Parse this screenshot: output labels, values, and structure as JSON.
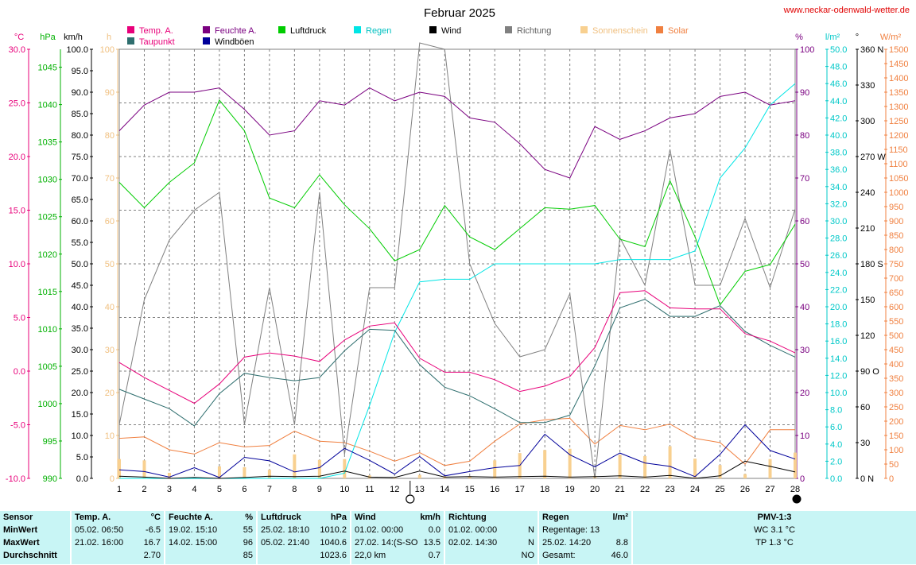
{
  "site_link": "www.neckar-odenwald-wetter.de",
  "colors": {
    "temp": "#e8007a",
    "dew": "#2e6e6e",
    "humidity": "#7a0080",
    "wind_gust": "#00009a",
    "pressure": "#00cc00",
    "rain": "#00e5e5",
    "wind": "#000000",
    "direction": "#808080",
    "sunshine": "#f8d090",
    "solar": "#f08040"
  },
  "chart_data": {
    "type": "line",
    "title": "Februar 2025",
    "x": [
      1,
      2,
      3,
      4,
      5,
      6,
      7,
      8,
      9,
      10,
      11,
      12,
      13,
      14,
      15,
      16,
      17,
      18,
      19,
      20,
      21,
      22,
      23,
      24,
      25,
      26,
      27,
      28
    ],
    "x_ticks": [
      "1",
      "2",
      "3",
      "4",
      "5",
      "6",
      "7",
      "8",
      "9",
      "10",
      "11",
      "12",
      "13",
      "14",
      "15",
      "16",
      "17",
      "18",
      "19",
      "20",
      "21",
      "22",
      "23",
      "24",
      "25",
      "26",
      "27",
      "28"
    ],
    "legend": [
      {
        "key": "temp",
        "label": "Temp. A."
      },
      {
        "key": "humidity",
        "label": "Feuchte A."
      },
      {
        "key": "pressure",
        "label": "Luftdruck"
      },
      {
        "key": "rain",
        "label": "Regen"
      },
      {
        "key": "wind",
        "label": "Wind"
      },
      {
        "key": "direction",
        "label": "Richtung"
      },
      {
        "key": "sunshine",
        "label": "Sonnenschein"
      },
      {
        "key": "solar",
        "label": "Solar"
      },
      {
        "key": "dew",
        "label": "Taupunkt"
      },
      {
        "key": "wind_gust",
        "label": "Windböen"
      }
    ],
    "axes": [
      {
        "key": "temp",
        "unit": "°C",
        "ticks": [
          "30.0",
          "25.0",
          "20.0",
          "15.0",
          "10.0",
          "5.0",
          "0.0",
          "-5.0",
          "-10.0"
        ],
        "range": [
          -10,
          30
        ]
      },
      {
        "key": "pressure",
        "unit": "hPa",
        "ticks": [
          "1045",
          "1040",
          "1035",
          "1030",
          "1025",
          "1020",
          "1015",
          "1010",
          "1005",
          "1000",
          "995",
          "990"
        ],
        "range": [
          990,
          1047.4
        ]
      },
      {
        "key": "wind",
        "unit": "km/h",
        "ticks": [
          "100.0",
          "95.0",
          "90.0",
          "85.0",
          "80.0",
          "75.0",
          "70.0",
          "65.0",
          "60.0",
          "55.0",
          "50.0",
          "45.0",
          "40.0",
          "35.0",
          "30.0",
          "25.0",
          "20.0",
          "15.0",
          "10.0",
          "5.0",
          "0.0"
        ],
        "range": [
          0,
          100
        ]
      },
      {
        "key": "sunshine",
        "unit": "h",
        "ticks": [
          "100",
          "90",
          "80",
          "70",
          "60",
          "50",
          "40",
          "30",
          "20",
          "10",
          "0"
        ],
        "range": [
          0,
          100
        ]
      },
      {
        "key": "humidity",
        "unit": "%",
        "ticks": [
          "100",
          "90",
          "80",
          "70",
          "60",
          "50",
          "40",
          "30",
          "20",
          "10",
          "0"
        ],
        "range": [
          0,
          100
        ]
      },
      {
        "key": "rain",
        "unit": "l/m²",
        "ticks": [
          "50.0",
          "48.0",
          "46.0",
          "44.0",
          "42.0",
          "40.0",
          "38.0",
          "36.0",
          "34.0",
          "32.0",
          "30.0",
          "28.0",
          "26.0",
          "24.0",
          "22.0",
          "20.0",
          "18.0",
          "16.0",
          "14.0",
          "12.0",
          "10.0",
          "8.0",
          "6.0",
          "4.0",
          "2.0",
          "0.0"
        ],
        "range": [
          0,
          50
        ]
      },
      {
        "key": "direction",
        "unit": "°",
        "ticks": [
          "360 N",
          "330",
          "300",
          "270 W",
          "240",
          "210",
          "180 S",
          "150",
          "120",
          "90 O",
          "60",
          "30",
          "0 N"
        ],
        "range": [
          0,
          360
        ]
      },
      {
        "key": "solar",
        "unit": "W/m²",
        "ticks": [
          "1500",
          "1450",
          "1400",
          "1350",
          "1300",
          "1250",
          "1200",
          "1150",
          "1100",
          "1050",
          "1000",
          "950",
          "900",
          "850",
          "800",
          "750",
          "700",
          "650",
          "600",
          "550",
          "500",
          "450",
          "400",
          "350",
          "300",
          "250",
          "200",
          "150",
          "100",
          "50",
          "0"
        ],
        "range": [
          0,
          1500
        ]
      }
    ],
    "series": [
      {
        "key": "temp",
        "name": "Temp. A.",
        "values": [
          0.8,
          -0.6,
          -1.8,
          -3.0,
          -1.2,
          1.3,
          1.7,
          1.4,
          0.9,
          2.9,
          4.2,
          4.5,
          1.2,
          -0.1,
          -0.1,
          -0.8,
          -1.9,
          -1.4,
          -0.5,
          2.2,
          7.3,
          7.5,
          5.9,
          5.8,
          5.8,
          3.5,
          2.8,
          1.7
        ]
      },
      {
        "key": "dew",
        "name": "Taupunkt",
        "values": [
          -1.7,
          -2.6,
          -3.5,
          -5.1,
          -2.1,
          -0.2,
          -0.6,
          -0.9,
          -0.6,
          1.9,
          3.9,
          3.8,
          0.6,
          -1.5,
          -2.3,
          -3.5,
          -4.8,
          -4.8,
          -4.1,
          0.5,
          5.9,
          6.7,
          5.1,
          5.1,
          6.1,
          3.7,
          2.4,
          1.3
        ]
      },
      {
        "key": "humidity",
        "name": "Feuchte A.",
        "values": [
          81,
          87,
          90,
          90,
          91,
          86,
          80,
          81,
          88,
          87,
          91,
          88,
          90,
          89,
          84,
          83,
          78,
          72,
          70,
          82,
          79,
          81,
          84,
          85,
          89,
          90,
          87,
          88
        ]
      },
      {
        "key": "pressure",
        "name": "Luftdruck",
        "values": [
          1029.6,
          1026.2,
          1029.6,
          1032.2,
          1040.6,
          1036.5,
          1027.5,
          1026.2,
          1030.6,
          1026.6,
          1023.4,
          1019.1,
          1020.6,
          1026.5,
          1022.3,
          1020.6,
          1023.4,
          1026.2,
          1026.0,
          1026.5,
          1022.0,
          1021.0,
          1029.8,
          1022.3,
          1013.2,
          1017.7,
          1018.6,
          1024.0
        ]
      },
      {
        "key": "rain",
        "name": "Regen",
        "values": [
          0,
          0,
          0,
          0,
          0,
          0,
          0,
          0,
          0,
          0.6,
          8.5,
          17.0,
          22.9,
          23.2,
          23.2,
          25.0,
          25.0,
          25.0,
          25.0,
          25.0,
          25.5,
          25.5,
          25.5,
          26.5,
          35.0,
          38.5,
          43.5,
          46.0
        ]
      },
      {
        "key": "wind",
        "name": "Wind",
        "values": [
          0.5,
          0.3,
          0.0,
          0.2,
          0.0,
          0.2,
          0.5,
          0.4,
          0.5,
          1.7,
          0.3,
          0.2,
          1.7,
          0.3,
          0.4,
          0.3,
          0.4,
          0.5,
          0.3,
          0.4,
          0.6,
          0.3,
          0.7,
          0.0,
          0.6,
          4.0,
          2.8,
          1.5
        ]
      },
      {
        "key": "wind_gust",
        "name": "Windböen",
        "values": [
          2.0,
          1.6,
          0.3,
          2.5,
          0.2,
          4.9,
          4.1,
          1.5,
          2.5,
          7.0,
          4.2,
          1.0,
          5.1,
          0.6,
          1.6,
          2.5,
          3.0,
          10.3,
          5.5,
          2.7,
          5.9,
          3.6,
          2.8,
          0.4,
          5.6,
          12.5,
          6.5,
          4.5
        ]
      },
      {
        "key": "direction",
        "name": "Richtung",
        "values": [
          45,
          150,
          200,
          225,
          240,
          45,
          160,
          45,
          240,
          20,
          160,
          160,
          370,
          360,
          180,
          130,
          102,
          108,
          155,
          0,
          202,
          162,
          276,
          162,
          162,
          218,
          160,
          226
        ]
      },
      {
        "key": "sunshine",
        "name": "Sonnenschein",
        "values": [
          4.5,
          4.2,
          1.3,
          0.3,
          2.8,
          2.6,
          2.0,
          5.6,
          4.3,
          4.5,
          0.7,
          0.3,
          0.8,
          0.5,
          0.5,
          4.2,
          5.9,
          6.6,
          6.9,
          0.6,
          5.5,
          5.2,
          7.5,
          4.6,
          3.1,
          1.0,
          4.5,
          6.0
        ]
      },
      {
        "key": "solar",
        "name": "Solar",
        "values": [
          140,
          145,
          100,
          85,
          125,
          110,
          115,
          165,
          130,
          125,
          95,
          60,
          90,
          45,
          60,
          130,
          190,
          205,
          210,
          120,
          185,
          170,
          190,
          140,
          125,
          50,
          170,
          170
        ]
      }
    ]
  },
  "bottom_icons": {
    "moon_13": "new-moon-icon",
    "moon_28": "full-moon-icon"
  },
  "table": {
    "sensor": {
      "header": "Sensor",
      "min": "MinWert",
      "max": "MaxWert",
      "avg": "Durchschnitt"
    },
    "temp": {
      "label": "Temp. A.",
      "unit": "°C",
      "min_date": "05.02. 06:50",
      "min_val": "-6.5",
      "max_date": "21.02. 16:00",
      "max_val": "16.7",
      "avg_val": "2.70"
    },
    "humidity": {
      "label": "Feuchte A.",
      "unit": "%",
      "min_date": "19.02. 15:10",
      "min_val": "55",
      "max_date": "14.02. 15:00",
      "max_val": "96",
      "avg_val": "85"
    },
    "pressure": {
      "label": "Luftdruck",
      "unit": "hPa",
      "min_date": "25.02. 18:10",
      "min_val": "1010.2",
      "max_date": "05.02. 21:40",
      "max_val": "1040.6",
      "avg_val": "1023.6"
    },
    "wind": {
      "label": "Wind",
      "unit": "km/h",
      "min_date": "01.02. 00:00",
      "min_val": "0.0",
      "max_date": "27.02. 14:(S-SO",
      "max_val": "13.5",
      "avg_date": "22,0 km",
      "avg_val": "0.7"
    },
    "direction": {
      "label": "Richtung",
      "min_date": "01.02. 00:00",
      "min_val": "N",
      "max_date": "02.02. 14:30",
      "max_val": "N",
      "avg_val": "NO"
    },
    "rain": {
      "label": "Regen",
      "unit": "l/m²",
      "min_label": "Regentage: 13",
      "max_date": "25.02. 14:20",
      "max_val": "8.8",
      "avg_label": "Gesamt:",
      "avg_val": "46.0"
    },
    "pmv": {
      "label": "PMV-1:3",
      "wc": "WC 3.1 °C",
      "tp": "TP 1.3 °C"
    }
  }
}
